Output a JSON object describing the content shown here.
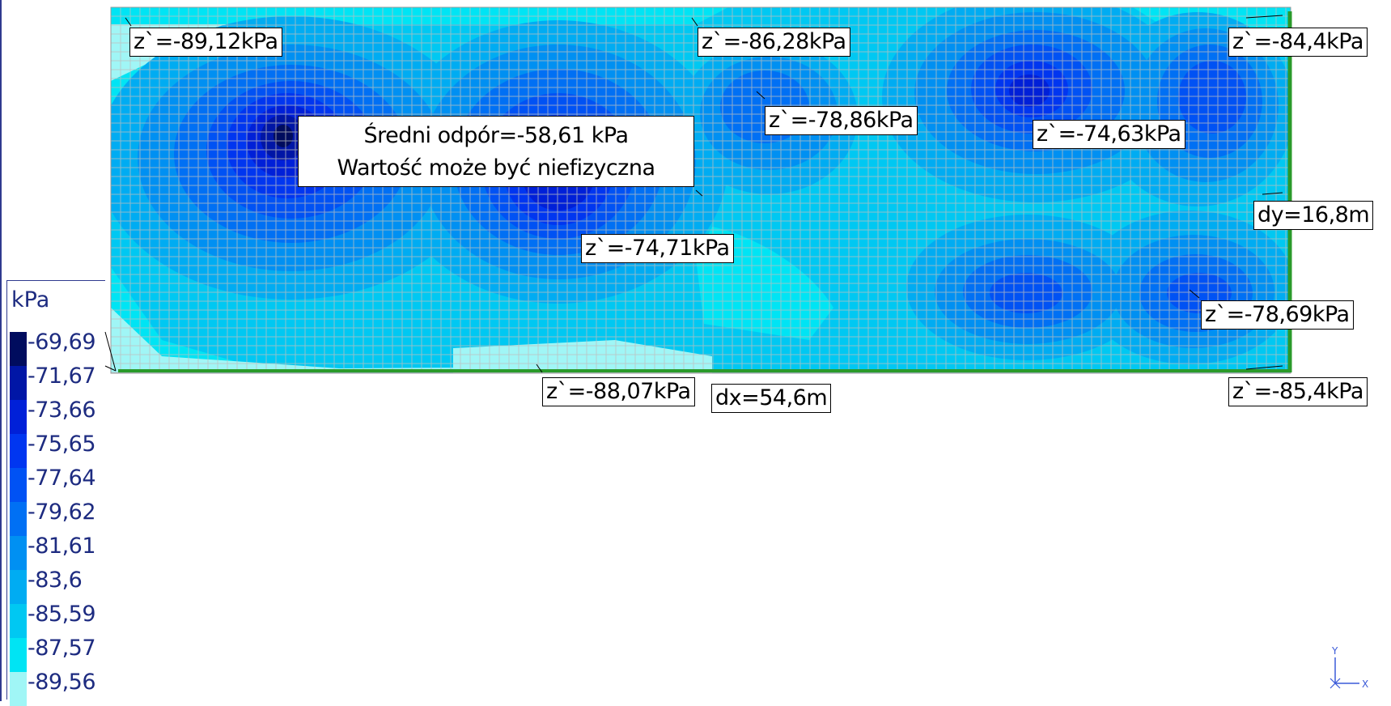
{
  "legend": {
    "unit": "kPa",
    "levels": [
      {
        "value": "-69,69",
        "color": "#000c5e"
      },
      {
        "value": "-71,67",
        "color": "#0016a6"
      },
      {
        "value": "-73,66",
        "color": "#0020d8"
      },
      {
        "value": "-75,65",
        "color": "#0036f0"
      },
      {
        "value": "-77,64",
        "color": "#0052f4"
      },
      {
        "value": "-79,62",
        "color": "#0070f4"
      },
      {
        "value": "-81,61",
        "color": "#0090f2"
      },
      {
        "value": "-83,6",
        "color": "#00acf2"
      },
      {
        "value": "-85,59",
        "color": "#00c8f2"
      },
      {
        "value": "-87,57",
        "color": "#00e4f4"
      },
      {
        "value": "-89,56",
        "color": "#a0f6f6"
      }
    ]
  },
  "labels": {
    "tl": "z`=-89,12kPa",
    "tm": "z`=-86,28kPa",
    "tr": "z`=-84,4kPa",
    "m1": "z`=-78,86kPa",
    "m2": "z`=-74,63kPa",
    "m3": "z`=-74,71kPa",
    "m4": "z`=-78,69kPa",
    "bl": "z`=-88,07kPa",
    "br": "z`=-85,4kPa",
    "dy": "dy=16,8m",
    "dx": "dx=54,6m"
  },
  "average": {
    "line1": "Średni odpór=-58,61 kPa",
    "line2": "Wartość może być niefizyczna"
  },
  "axes": {
    "x": "X",
    "y": "Y"
  },
  "colors": {
    "slab_edge": "#2a9a2a",
    "mesh": "#bfbfbf",
    "frame": "#2f3a8f"
  }
}
